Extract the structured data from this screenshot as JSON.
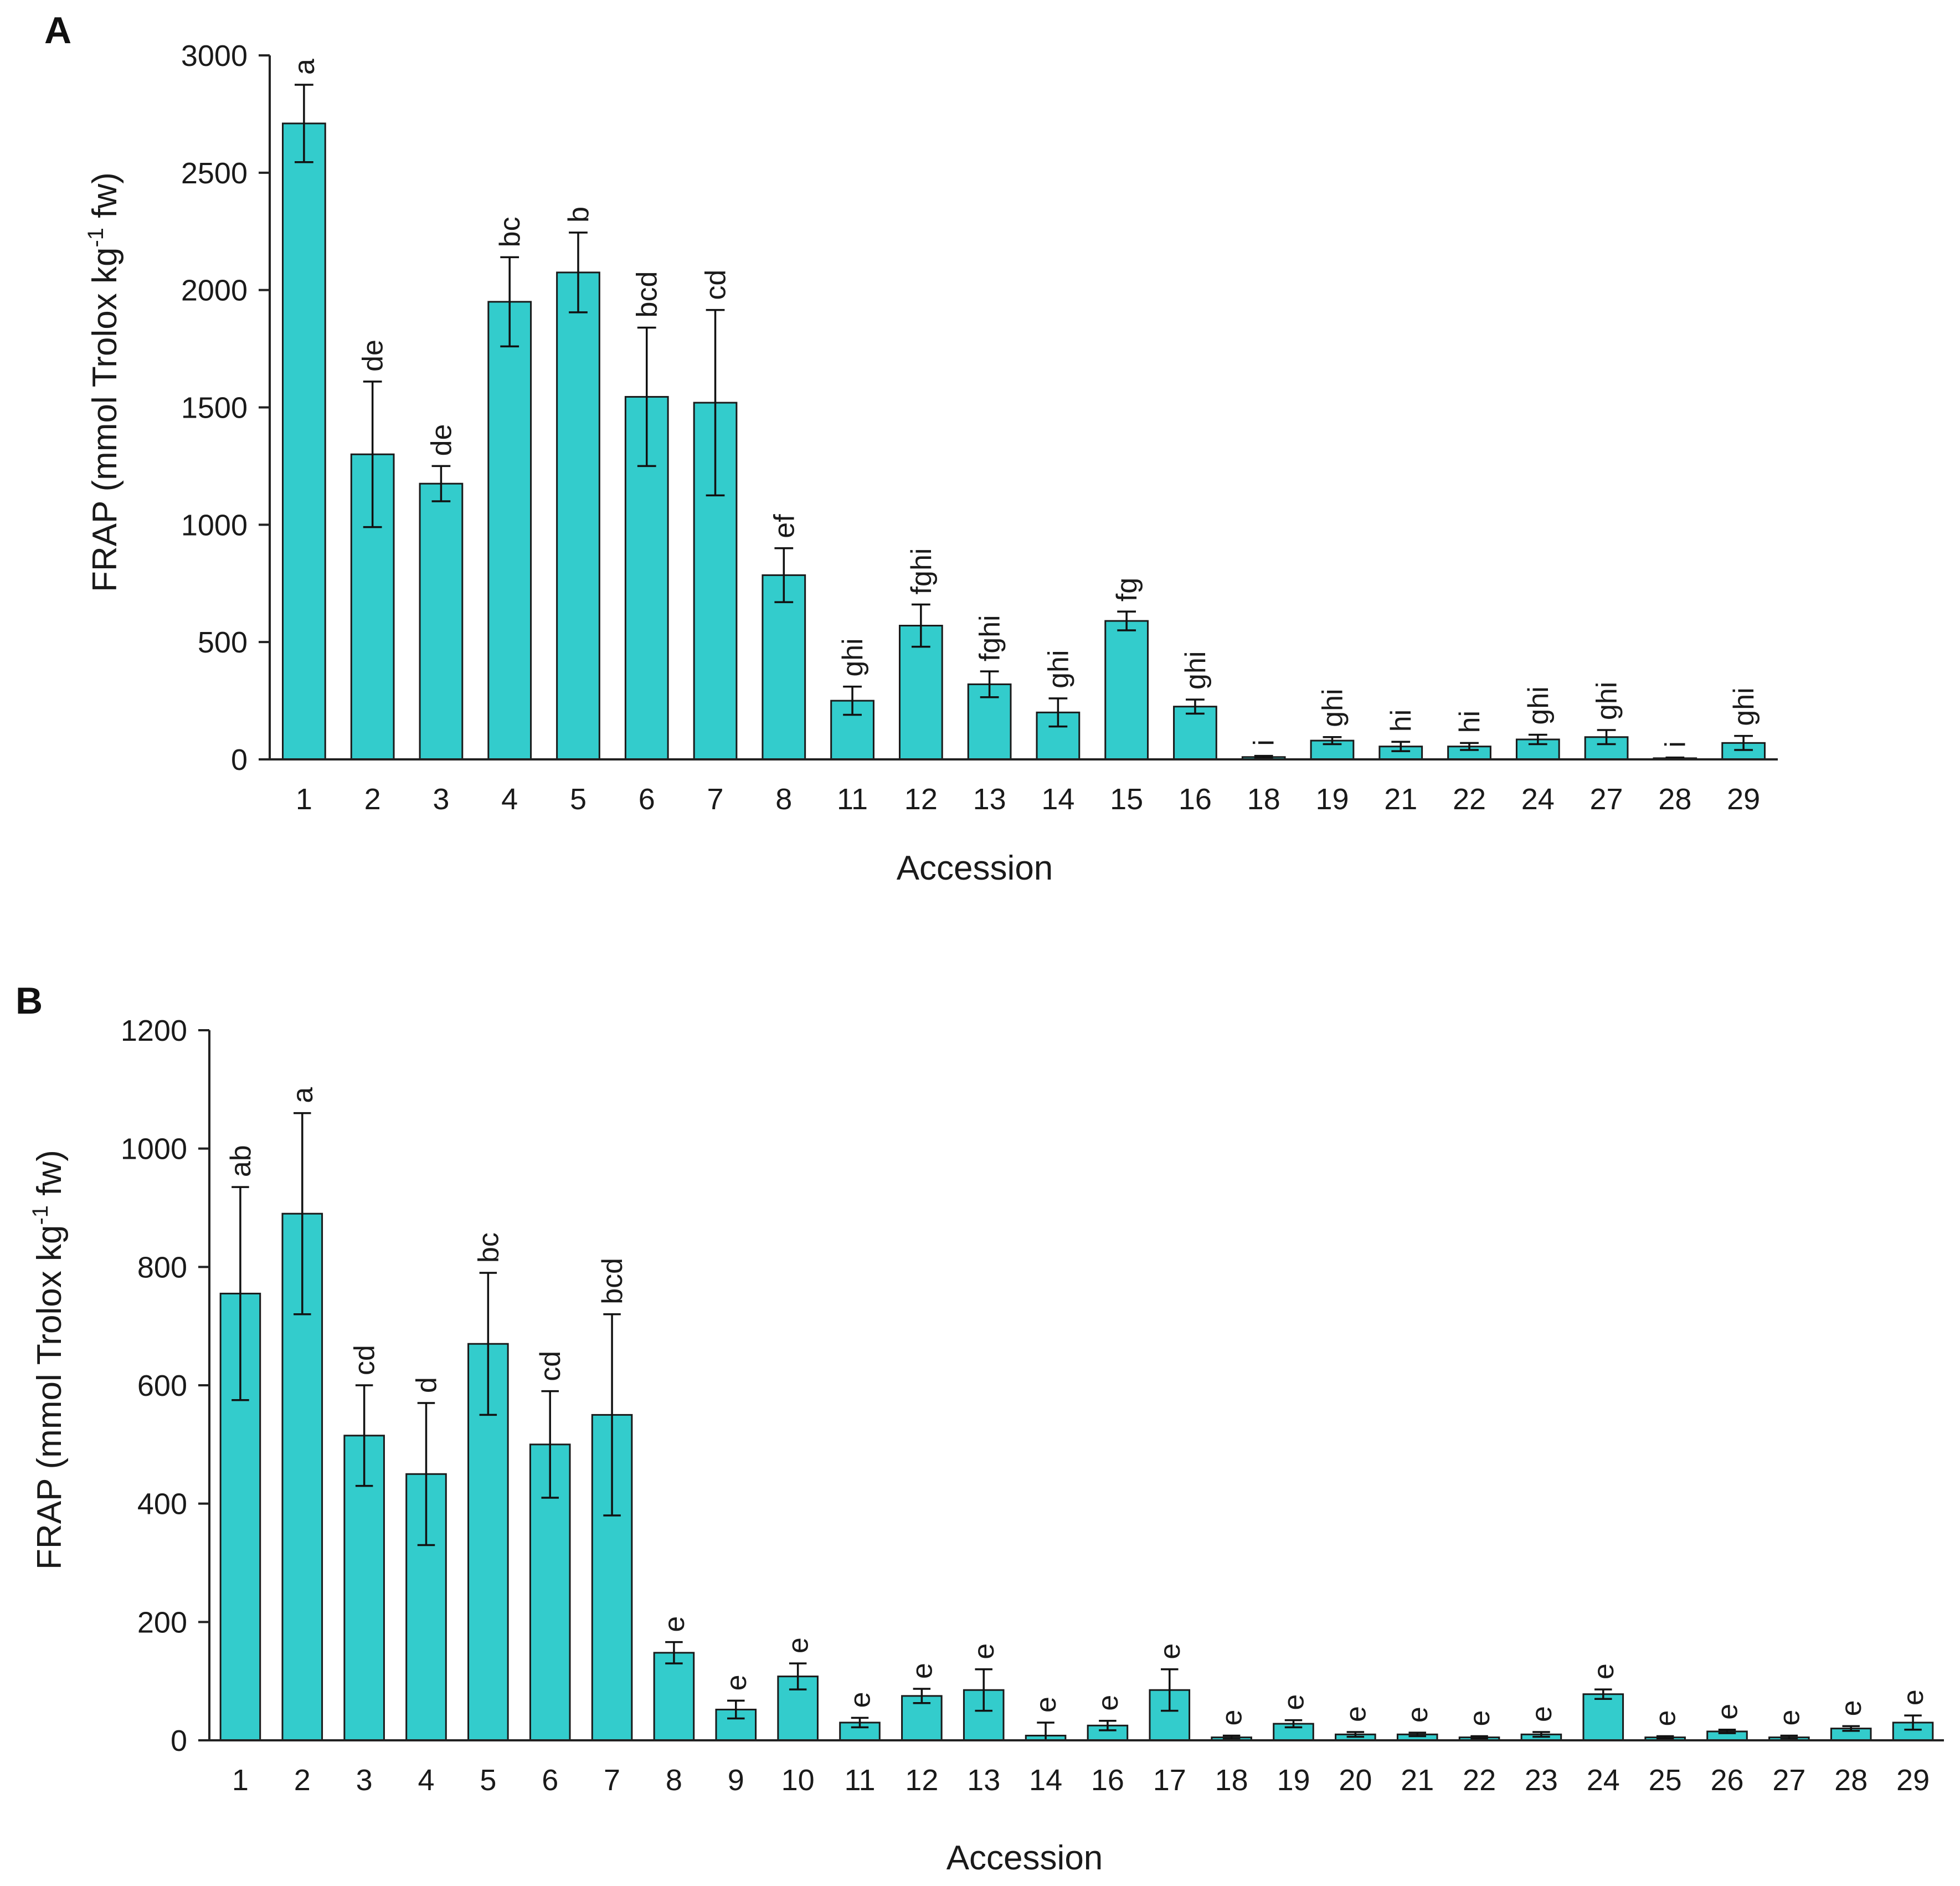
{
  "chart_data": [
    {
      "panel": "A",
      "type": "bar",
      "title": "",
      "xlabel": "Accession",
      "ylabel_parts": [
        "FRAP (mmol Trolox kg",
        "-1",
        " fw)"
      ],
      "ylim": [
        0,
        3000
      ],
      "yticks": [
        0,
        500,
        1000,
        1500,
        2000,
        2500,
        3000
      ],
      "bar_color": "#33cccc",
      "categories": [
        "1",
        "2",
        "3",
        "4",
        "5",
        "6",
        "7",
        "8",
        "11",
        "12",
        "13",
        "14",
        "15",
        "16",
        "18",
        "19",
        "21",
        "22",
        "24",
        "27",
        "28",
        "29"
      ],
      "values": [
        2710,
        1300,
        1175,
        1950,
        2075,
        1545,
        1520,
        785,
        250,
        570,
        320,
        200,
        590,
        225,
        10,
        80,
        55,
        55,
        85,
        95,
        5,
        70
      ],
      "errors": [
        165,
        310,
        75,
        190,
        170,
        295,
        395,
        115,
        60,
        90,
        55,
        60,
        40,
        30,
        5,
        15,
        20,
        15,
        20,
        30,
        3,
        30
      ],
      "letters": [
        "a",
        "de",
        "de",
        "bc",
        "b",
        "bcd",
        "cd",
        "ef",
        "ghi",
        "fghi",
        "fghi",
        "ghi",
        "fg",
        "ghi",
        "i",
        "ghi",
        "hi",
        "hi",
        "ghi",
        "ghi",
        "i",
        "ghi"
      ]
    },
    {
      "panel": "B",
      "type": "bar",
      "title": "",
      "xlabel": "Accession",
      "ylabel_parts": [
        "FRAP (mmol Trolox kg",
        "-1",
        " fw)"
      ],
      "ylim": [
        0,
        1200
      ],
      "yticks": [
        0,
        200,
        400,
        600,
        800,
        1000,
        1200
      ],
      "bar_color": "#33cccc",
      "categories": [
        "1",
        "2",
        "3",
        "4",
        "5",
        "6",
        "7",
        "8",
        "9",
        "10",
        "11",
        "12",
        "13",
        "14",
        "16",
        "17",
        "18",
        "19",
        "20",
        "21",
        "22",
        "23",
        "24",
        "25",
        "26",
        "27",
        "28",
        "29"
      ],
      "values": [
        755,
        890,
        515,
        450,
        670,
        500,
        550,
        148,
        52,
        108,
        30,
        75,
        85,
        8,
        25,
        85,
        5,
        28,
        10,
        10,
        5,
        10,
        78,
        5,
        15,
        5,
        20,
        30
      ],
      "errors": [
        180,
        170,
        85,
        120,
        120,
        90,
        170,
        18,
        15,
        22,
        8,
        12,
        35,
        22,
        8,
        35,
        3,
        6,
        4,
        3,
        2,
        4,
        8,
        2,
        3,
        3,
        4,
        12
      ],
      "letters": [
        "ab",
        "a",
        "cd",
        "d",
        "bc",
        "cd",
        "bcd",
        "e",
        "e",
        "e",
        "e",
        "e",
        "e",
        "e",
        "e",
        "e",
        "e",
        "e",
        "e",
        "e",
        "e",
        "e",
        "e",
        "e",
        "e",
        "e",
        "e",
        "e"
      ]
    }
  ]
}
